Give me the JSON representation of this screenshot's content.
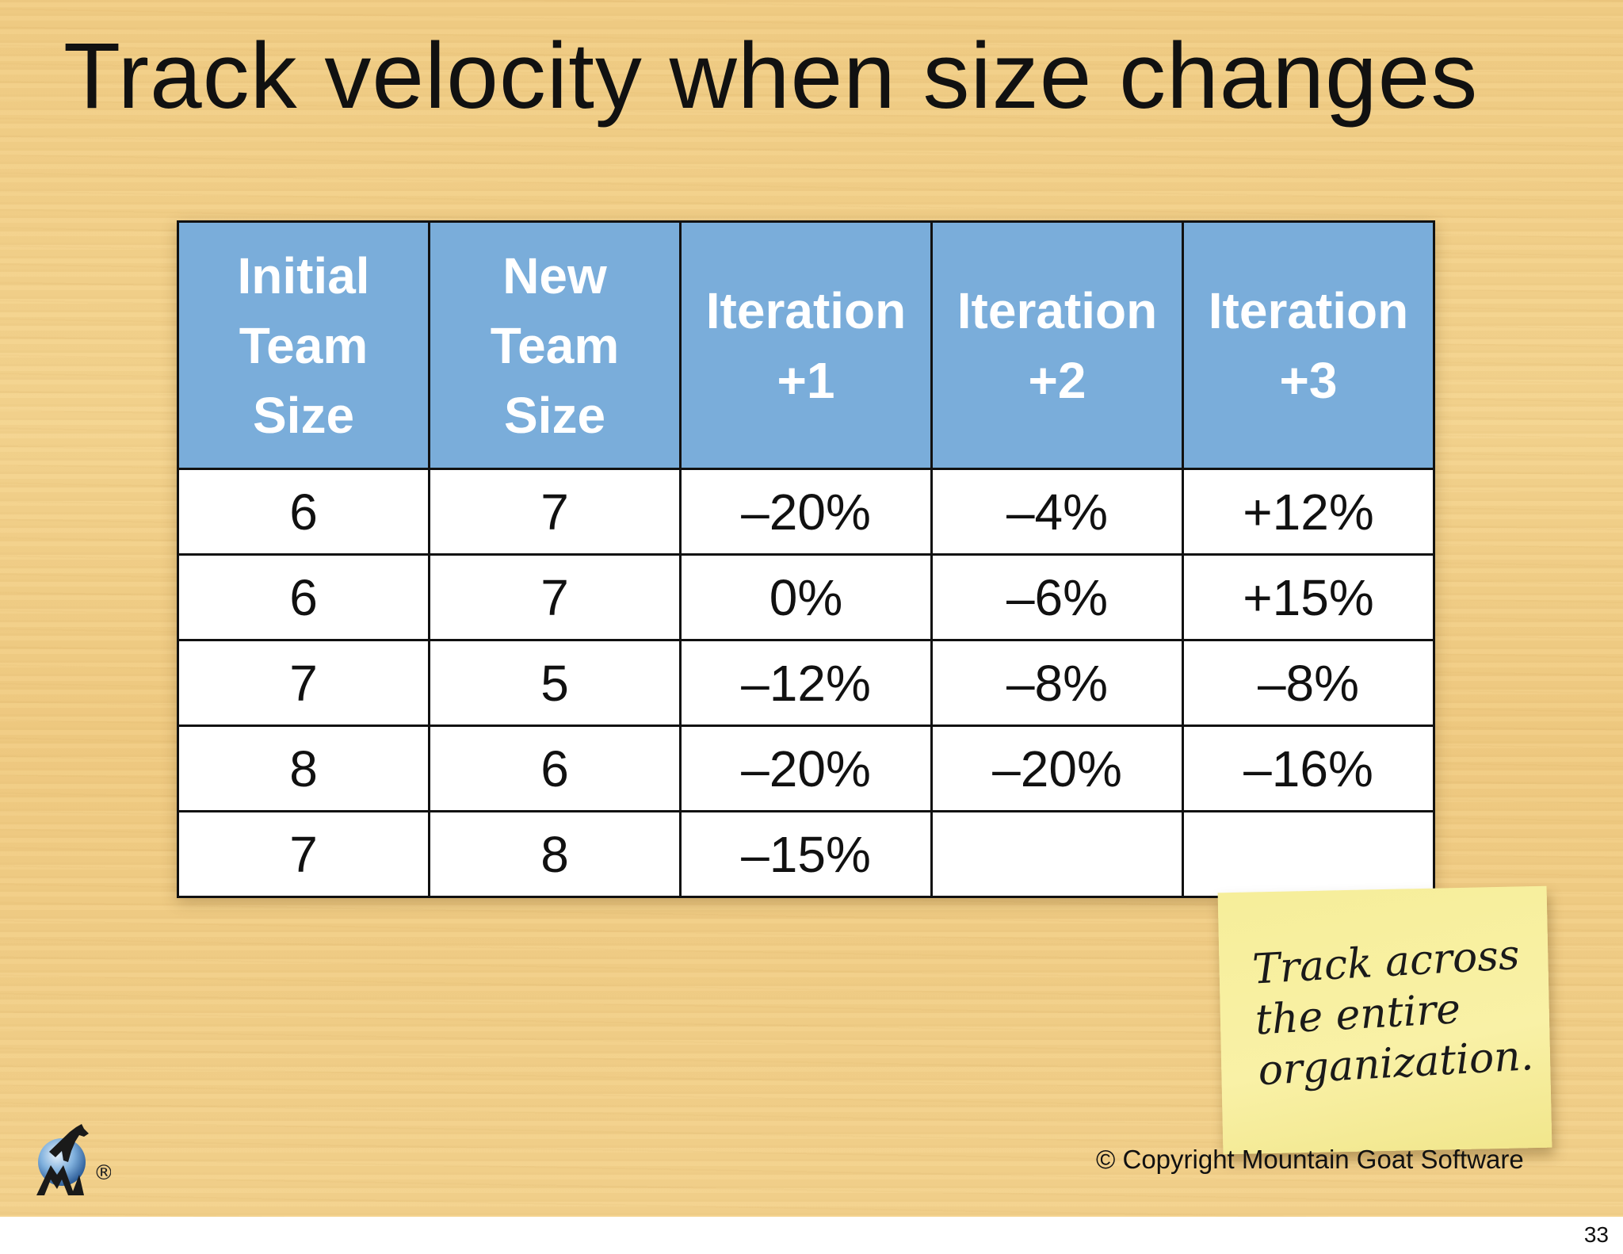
{
  "slide": {
    "title": "Track velocity when size changes"
  },
  "table": {
    "headers": [
      [
        "Initial",
        "Team",
        "Size"
      ],
      [
        "New",
        "Team",
        "Size"
      ],
      [
        "Iteration",
        "+1"
      ],
      [
        "Iteration",
        "+2"
      ],
      [
        "Iteration",
        "+3"
      ]
    ],
    "rows": [
      [
        "6",
        "7",
        "–20%",
        "–4%",
        "+12%"
      ],
      [
        "6",
        "7",
        "0%",
        "–6%",
        "+15%"
      ],
      [
        "7",
        "5",
        "–12%",
        "–8%",
        "–8%"
      ],
      [
        "8",
        "6",
        "–20%",
        "–20%",
        "–16%"
      ],
      [
        "7",
        "8",
        "–15%",
        "",
        ""
      ]
    ]
  },
  "sticky_note": {
    "lines": [
      "Track across",
      "the entire",
      "organization."
    ]
  },
  "logo": {
    "icon": "mountain-goat-logo-icon",
    "registered_mark": "®"
  },
  "footer": {
    "copyright": "© Copyright Mountain Goat Software",
    "page_number": "33"
  },
  "colors": {
    "header_blue": "#7aadda",
    "sticky_yellow": "#f8f0a2",
    "wood": "#f2cf89"
  }
}
